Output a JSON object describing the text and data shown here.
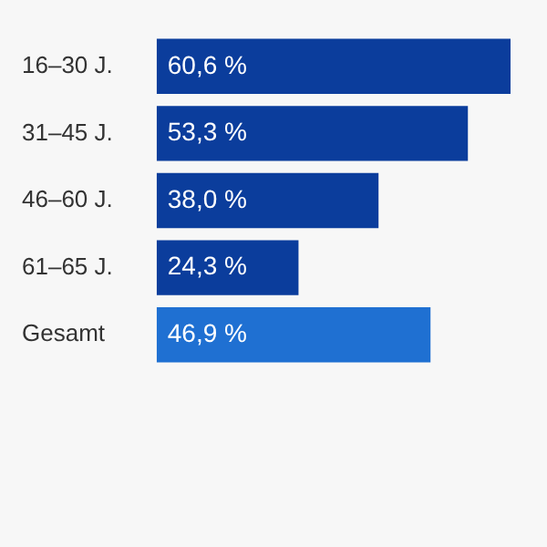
{
  "chart_data": {
    "type": "bar",
    "orientation": "horizontal",
    "categories": [
      "16–30 J.",
      "31–45 J.",
      "46–60 J.",
      "61–65 J.",
      "Gesamt"
    ],
    "values": [
      60.6,
      53.3,
      38.0,
      24.3,
      46.9
    ],
    "colors": [
      "#0b3d9c",
      "#0b3d9c",
      "#0b3d9c",
      "#0b3d9c",
      "#1f70d2"
    ],
    "value_labels": [
      "60,6 %",
      "53,3 %",
      "38,0 %",
      "24,3 %",
      "46,9 %"
    ],
    "legend": false
  }
}
